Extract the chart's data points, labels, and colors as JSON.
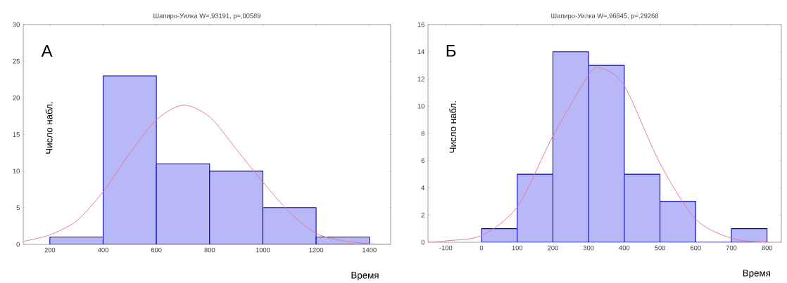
{
  "chart_data": [
    {
      "type": "histogram",
      "title": "Шапиро-Уилка W=,93191, p=,00589",
      "xlabel": "Время",
      "ylabel": "Число набл.",
      "annotations": [
        "А"
      ],
      "xlim": [
        100,
        1480
      ],
      "ylim": [
        0,
        30
      ],
      "xticks": [
        200,
        400,
        600,
        800,
        1000,
        1200,
        1400
      ],
      "yticks": [
        0,
        5,
        10,
        15,
        20,
        25,
        30
      ],
      "series": [
        {
          "type": "histogram",
          "bins": [
            200,
            400,
            600,
            800,
            1000,
            1200,
            1400
          ],
          "values": [
            1,
            23,
            11,
            10,
            5,
            1
          ],
          "color": "#b8b8f8"
        },
        {
          "type": "line",
          "color": "#e07890",
          "x": [
            100,
            200,
            300,
            400,
            500,
            600,
            700,
            800,
            900,
            1000,
            1100,
            1200,
            1300,
            1400,
            1480
          ],
          "values": [
            0.4,
            1.3,
            3.2,
            7.2,
            12.4,
            17,
            19,
            17.4,
            13,
            8.5,
            4.4,
            1.5,
            0.5,
            0.1,
            0
          ]
        }
      ]
    },
    {
      "type": "histogram",
      "title": "Шапиро-Уилка W=,96845, p=,29268",
      "xlabel": "Время",
      "ylabel": "Число набл.",
      "annotations": [
        "Б"
      ],
      "xlim": [
        -150,
        840
      ],
      "ylim": [
        0,
        16
      ],
      "xticks": [
        -100,
        0,
        100,
        200,
        300,
        400,
        500,
        600,
        700,
        800
      ],
      "yticks": [
        0,
        2,
        4,
        6,
        8,
        10,
        12,
        14,
        16
      ],
      "series": [
        {
          "type": "histogram",
          "bins": [
            0,
            100,
            200,
            300,
            400,
            500,
            600,
            700,
            800
          ],
          "values": [
            1,
            5,
            14,
            13,
            5,
            3,
            0,
            1
          ],
          "color": "#b8b8f8"
        },
        {
          "type": "line",
          "color": "#e07890",
          "x": [
            -150,
            -100,
            0,
            100,
            200,
            300,
            335,
            400,
            500,
            600,
            700,
            800,
            840
          ],
          "values": [
            0,
            0.1,
            0.5,
            2.6,
            7.8,
            12.3,
            12.8,
            11.5,
            5.8,
            1.7,
            0.3,
            0,
            0
          ]
        }
      ]
    }
  ]
}
